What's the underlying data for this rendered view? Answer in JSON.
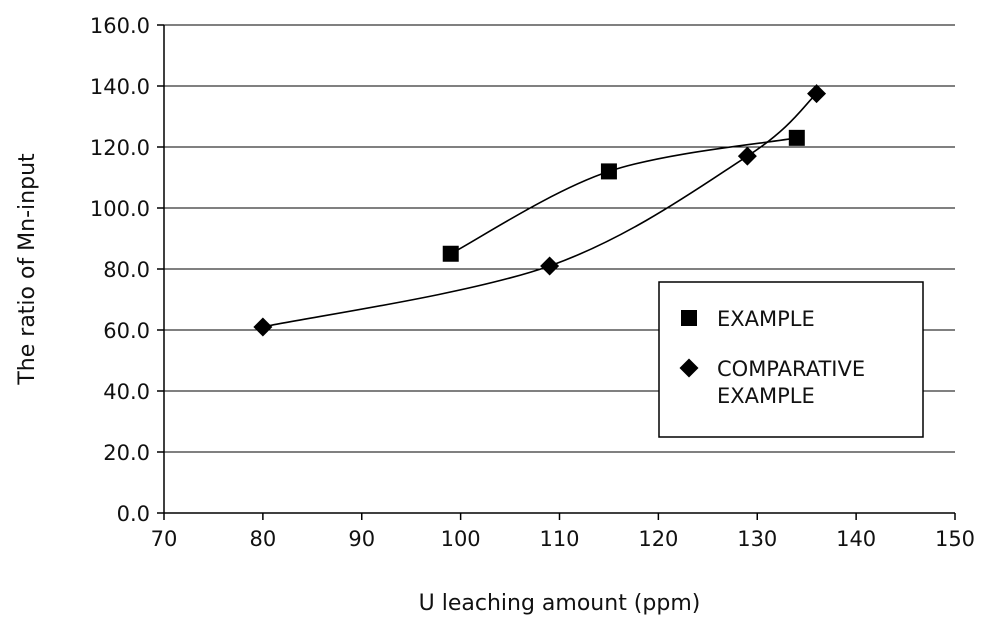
{
  "chart_data": {
    "type": "line",
    "xlabel": "U leaching amount (ppm)",
    "ylabel": "The ratio of Mn-input",
    "xlim": [
      70,
      150
    ],
    "ylim": [
      0,
      160
    ],
    "x_ticks": [
      70,
      80,
      90,
      100,
      110,
      120,
      130,
      140,
      150
    ],
    "y_ticks": [
      0,
      20,
      40,
      60,
      80,
      100,
      120,
      140,
      160
    ],
    "x_tick_labels": [
      "70",
      "80",
      "90",
      "100",
      "110",
      "120",
      "130",
      "140",
      "150"
    ],
    "y_tick_labels": [
      "0.0",
      "20.0",
      "40.0",
      "60.0",
      "80.0",
      "100.0",
      "120.0",
      "140.0",
      "160.0"
    ],
    "grid": "horizontal",
    "legend_position": "right",
    "series": [
      {
        "name": "EXAMPLE",
        "marker": "square",
        "color": "#000000",
        "points": [
          {
            "x": 99,
            "y": 85
          },
          {
            "x": 115,
            "y": 112
          },
          {
            "x": 134,
            "y": 123
          }
        ]
      },
      {
        "name": "COMPARATIVE EXAMPLE",
        "name_lines": [
          "COMPARATIVE",
          "EXAMPLE"
        ],
        "marker": "diamond",
        "color": "#000000",
        "points": [
          {
            "x": 80,
            "y": 61
          },
          {
            "x": 109,
            "y": 81
          },
          {
            "x": 129,
            "y": 117
          },
          {
            "x": 136,
            "y": 137.5
          }
        ]
      }
    ]
  }
}
